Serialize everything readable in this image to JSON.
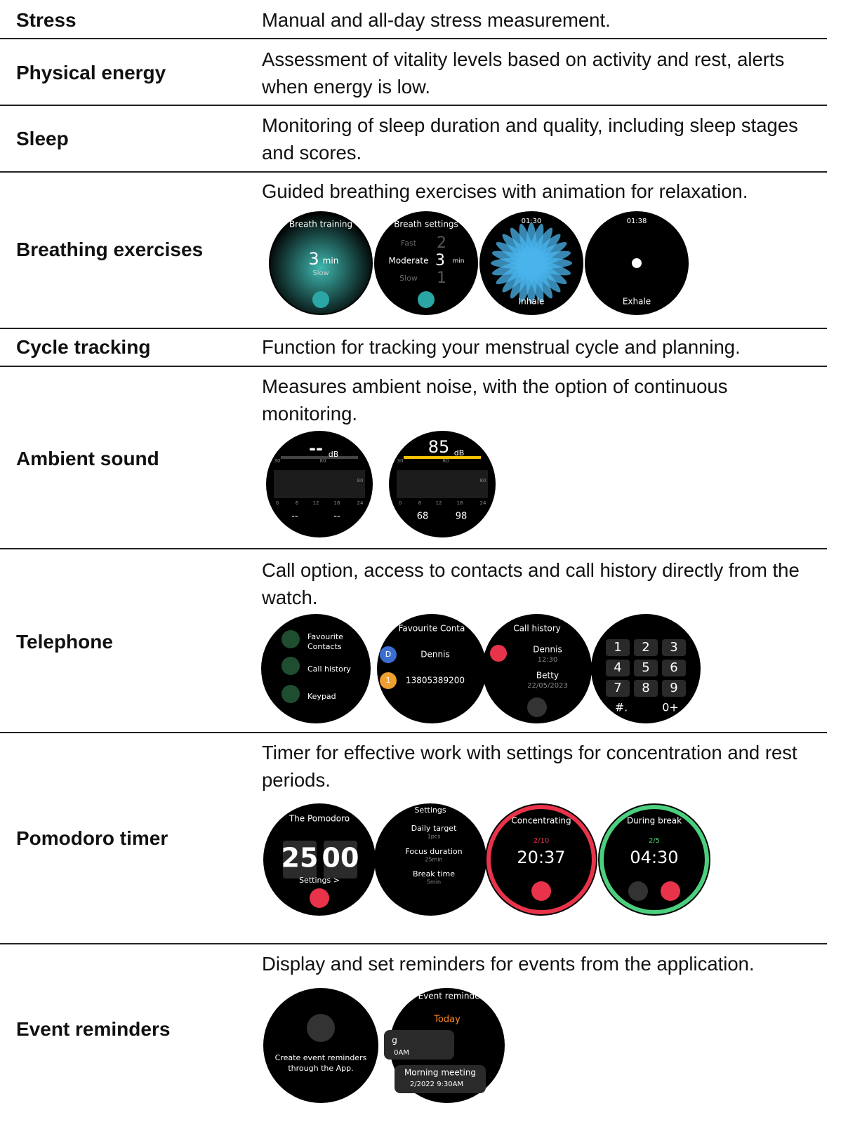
{
  "rows": [
    {
      "feature": "Stress",
      "description": "Manual and all-day stress measurement."
    },
    {
      "feature": "Physical energy",
      "description": "Assessment of vitality levels based on activity and rest, alerts when energy is low."
    },
    {
      "feature": "Sleep",
      "description": "Monitoring of sleep duration and quality, including sleep stages and scores."
    },
    {
      "feature": "Breathing exercises",
      "description": "Guided breathing exercises with animation for relaxation.",
      "screens": [
        {
          "texts": [
            "Breath training",
            "3",
            "min",
            "Slow"
          ]
        },
        {
          "texts": [
            "Breath settings",
            "Fast",
            "2",
            "Moderate",
            "3",
            "min",
            "Slow",
            "1"
          ]
        },
        {
          "texts": [
            "01:30",
            "Inhale"
          ]
        },
        {
          "texts": [
            "01:38",
            "Exhale"
          ]
        }
      ]
    },
    {
      "feature": "Cycle tracking",
      "description": "Function for tracking your menstrual cycle and planning."
    },
    {
      "feature": "Ambient sound",
      "description": "Measures ambient noise, with the option of continuous monitoring.",
      "screens": [
        {
          "texts": [
            "--",
            "dB",
            "30",
            "80",
            "80",
            "0",
            "6",
            "12",
            "18",
            "24",
            "--",
            "--"
          ]
        },
        {
          "texts": [
            "85",
            "dB",
            "30",
            "80",
            "80",
            "0",
            "6",
            "12",
            "18",
            "24",
            "68",
            "98"
          ]
        }
      ]
    },
    {
      "feature": "Telephone",
      "description": "Call option, access to contacts and call history directly from the watch.",
      "screens": [
        {
          "texts": [
            "Favourite",
            "Contacts",
            "Call history",
            "Keypad"
          ]
        },
        {
          "texts": [
            "Favourite Conta",
            "D",
            "Dennis",
            "1",
            "13805389200"
          ]
        },
        {
          "texts": [
            "Call history",
            "Dennis",
            "12:30",
            "Betty",
            "22/05/2023"
          ]
        },
        {
          "texts": [
            "1",
            "2",
            "3",
            "4",
            "5",
            "6",
            "7",
            "8",
            "9",
            "#.",
            "0+"
          ]
        }
      ]
    },
    {
      "feature": "Pomodoro timer",
      "description": "Timer for effective work with settings for concentration and rest periods.",
      "screens": [
        {
          "texts": [
            "The Pomodoro",
            "25",
            "00",
            "Settings >"
          ]
        },
        {
          "texts": [
            "Settings",
            "Daily target",
            "1pcs",
            "Focus duration",
            "25min",
            "Break time",
            "5min"
          ]
        },
        {
          "texts": [
            "Concentrating",
            "2/10",
            "20:37"
          ]
        },
        {
          "texts": [
            "During break",
            "2/5",
            "04:30"
          ]
        }
      ]
    },
    {
      "feature": "Event reminders",
      "description": "Display and set reminders for events from the application.",
      "screens": [
        {
          "texts": [
            "Create event reminders",
            "through the App."
          ]
        },
        {
          "texts": [
            "Event reminder",
            "Today",
            "g",
            "0AM",
            "Morning meeting",
            "2/2022 9:30AM"
          ]
        }
      ]
    }
  ]
}
